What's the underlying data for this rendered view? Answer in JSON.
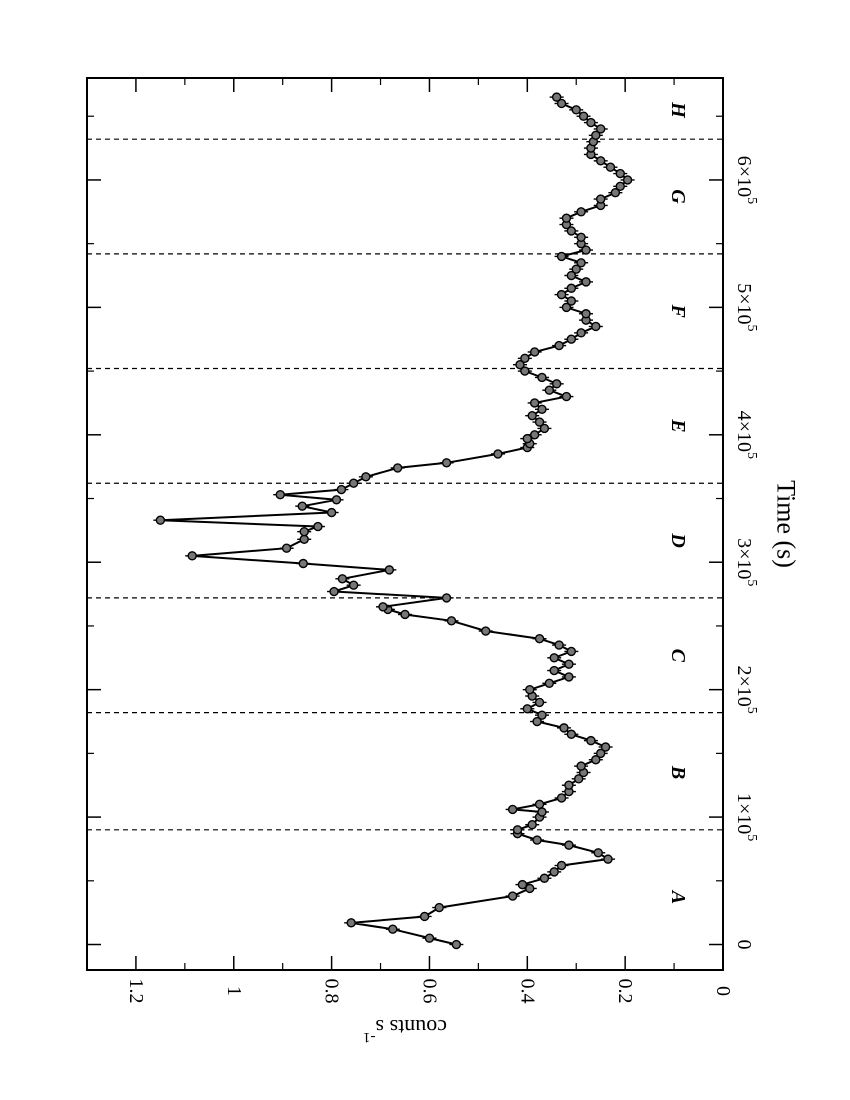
{
  "chart_data": {
    "type": "line",
    "orientation": "rotated-90-clockwise",
    "xlabel": "Time (s)",
    "ylabel_base": "counts s",
    "ylabel_exponent": "-1",
    "xlim": [
      -20000,
      680000
    ],
    "ylim": [
      0,
      1.3
    ],
    "x_ticks": [
      {
        "value": 0,
        "base": "0",
        "exp": ""
      },
      {
        "value": 100000,
        "base": "1×10",
        "exp": "5"
      },
      {
        "value": 200000,
        "base": "2×10",
        "exp": "5"
      },
      {
        "value": 300000,
        "base": "3×10",
        "exp": "5"
      },
      {
        "value": 400000,
        "base": "4×10",
        "exp": "5"
      },
      {
        "value": 500000,
        "base": "5×10",
        "exp": "5"
      },
      {
        "value": 600000,
        "base": "6×10",
        "exp": "5"
      }
    ],
    "x_minor_ticks": [
      50000,
      150000,
      250000,
      350000,
      450000,
      550000,
      650000
    ],
    "y_ticks": [
      {
        "value": 0,
        "label": "0"
      },
      {
        "value": 0.2,
        "label": "0.2"
      },
      {
        "value": 0.4,
        "label": "0.4"
      },
      {
        "value": 0.6,
        "label": "0.6"
      },
      {
        "value": 0.8,
        "label": "0.8"
      },
      {
        "value": 1.0,
        "label": "1"
      },
      {
        "value": 1.2,
        "label": "1.2"
      }
    ],
    "y_minor_ticks": [
      0.1,
      0.3,
      0.5,
      0.7,
      0.9,
      1.1,
      1.3
    ],
    "dividers": [
      90000,
      182000,
      272000,
      362000,
      452000,
      542000,
      632000
    ],
    "regions": [
      {
        "label": "A",
        "x": 37000
      },
      {
        "label": "B",
        "x": 135000
      },
      {
        "label": "C",
        "x": 227000
      },
      {
        "label": "D",
        "x": 317000
      },
      {
        "label": "E",
        "x": 407000
      },
      {
        "label": "F",
        "x": 497000
      },
      {
        "label": "G",
        "x": 587000
      },
      {
        "label": "H",
        "x": 655000
      }
    ],
    "series": [
      {
        "points": [
          [
            0,
            0.545
          ],
          [
            5000,
            0.6
          ],
          [
            12000,
            0.675
          ],
          [
            17000,
            0.76
          ],
          [
            22000,
            0.61
          ],
          [
            29000,
            0.58
          ],
          [
            38000,
            0.43
          ],
          [
            44000,
            0.395
          ],
          [
            47000,
            0.41
          ],
          [
            52000,
            0.365
          ],
          [
            57000,
            0.345
          ],
          [
            62000,
            0.33
          ],
          [
            67000,
            0.235
          ],
          [
            72000,
            0.255
          ],
          [
            78000,
            0.315
          ],
          [
            82000,
            0.38
          ],
          [
            87000,
            0.42
          ],
          [
            90000,
            0.42
          ],
          [
            94000,
            0.39
          ],
          [
            100000,
            0.375
          ],
          [
            104000,
            0.37
          ],
          [
            106000,
            0.43
          ],
          [
            110000,
            0.375
          ],
          [
            115000,
            0.33
          ],
          [
            120000,
            0.315
          ],
          [
            125000,
            0.315
          ],
          [
            130000,
            0.295
          ],
          [
            135000,
            0.285
          ],
          [
            140000,
            0.29
          ],
          [
            145000,
            0.26
          ],
          [
            150000,
            0.25
          ],
          [
            155000,
            0.24
          ],
          [
            160000,
            0.27
          ],
          [
            165000,
            0.31
          ],
          [
            170000,
            0.325
          ],
          [
            175000,
            0.38
          ],
          [
            180000,
            0.37
          ],
          [
            185000,
            0.4
          ],
          [
            190000,
            0.375
          ],
          [
            195000,
            0.39
          ],
          [
            200000,
            0.395
          ],
          [
            205000,
            0.355
          ],
          [
            210000,
            0.315
          ],
          [
            215000,
            0.345
          ],
          [
            220000,
            0.315
          ],
          [
            225000,
            0.345
          ],
          [
            230000,
            0.31
          ],
          [
            235000,
            0.335
          ],
          [
            240000,
            0.375
          ],
          [
            246000,
            0.485
          ],
          [
            254000,
            0.555
          ],
          [
            259000,
            0.65
          ],
          [
            263000,
            0.685
          ],
          [
            265000,
            0.695
          ],
          [
            272000,
            0.565
          ],
          [
            277000,
            0.795
          ],
          [
            282000,
            0.755
          ],
          [
            287000,
            0.778
          ],
          [
            294000,
            0.682
          ],
          [
            299000,
            0.858
          ],
          [
            305000,
            1.085
          ],
          [
            311000,
            0.892
          ],
          [
            318000,
            0.856
          ],
          [
            324000,
            0.856
          ],
          [
            328000,
            0.828
          ],
          [
            333000,
            1.15
          ],
          [
            339000,
            0.8
          ],
          [
            344000,
            0.86
          ],
          [
            349000,
            0.79
          ],
          [
            353000,
            0.905
          ],
          [
            357000,
            0.78
          ],
          [
            362000,
            0.755
          ],
          [
            367000,
            0.73
          ],
          [
            374000,
            0.665
          ],
          [
            378000,
            0.565
          ],
          [
            385000,
            0.46
          ],
          [
            390000,
            0.4
          ],
          [
            393000,
            0.395
          ],
          [
            397000,
            0.4
          ],
          [
            400000,
            0.385
          ],
          [
            405000,
            0.365
          ],
          [
            410000,
            0.375
          ],
          [
            415000,
            0.39
          ],
          [
            420000,
            0.37
          ],
          [
            425000,
            0.385
          ],
          [
            430000,
            0.32
          ],
          [
            435000,
            0.355
          ],
          [
            440000,
            0.34
          ],
          [
            445000,
            0.37
          ],
          [
            450000,
            0.405
          ],
          [
            455000,
            0.415
          ],
          [
            460000,
            0.405
          ],
          [
            465000,
            0.385
          ],
          [
            470000,
            0.335
          ],
          [
            475000,
            0.31
          ],
          [
            480000,
            0.29
          ],
          [
            485000,
            0.26
          ],
          [
            490000,
            0.28
          ],
          [
            495000,
            0.28
          ],
          [
            500000,
            0.32
          ],
          [
            505000,
            0.31
          ],
          [
            510000,
            0.33
          ],
          [
            515000,
            0.31
          ],
          [
            520000,
            0.28
          ],
          [
            525000,
            0.31
          ],
          [
            530000,
            0.3
          ],
          [
            535000,
            0.29
          ],
          [
            540000,
            0.33
          ],
          [
            545000,
            0.28
          ],
          [
            550000,
            0.29
          ],
          [
            555000,
            0.29
          ],
          [
            560000,
            0.31
          ],
          [
            565000,
            0.32
          ],
          [
            570000,
            0.32
          ],
          [
            575000,
            0.29
          ],
          [
            580000,
            0.25
          ],
          [
            585000,
            0.25
          ],
          [
            590000,
            0.22
          ],
          [
            595000,
            0.21
          ],
          [
            600000,
            0.195
          ],
          [
            605000,
            0.21
          ],
          [
            610000,
            0.23
          ],
          [
            615000,
            0.25
          ],
          [
            620000,
            0.27
          ],
          [
            625000,
            0.27
          ],
          [
            630000,
            0.265
          ],
          [
            635000,
            0.26
          ],
          [
            640000,
            0.25
          ],
          [
            645000,
            0.27
          ],
          [
            650000,
            0.285
          ],
          [
            655000,
            0.3
          ],
          [
            660000,
            0.33
          ],
          [
            665000,
            0.34
          ]
        ]
      }
    ]
  }
}
